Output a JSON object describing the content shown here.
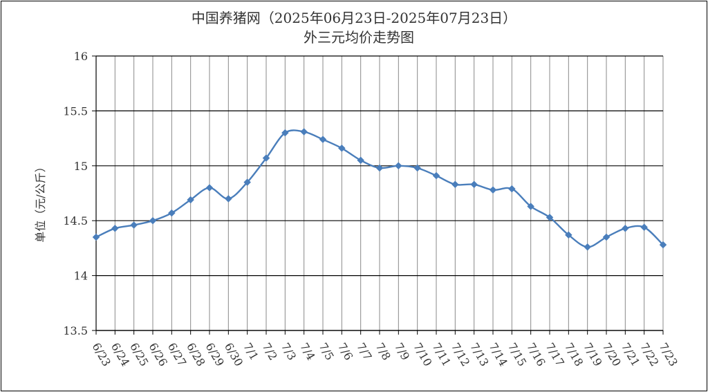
{
  "chart_data": {
    "type": "line",
    "title": "中国养猪网（2025年06月23日-2025年07月23日）",
    "subtitle": "外三元均价走势图",
    "xlabel": "",
    "ylabel": "单位（元/公斤）",
    "ylim": [
      13.5,
      16
    ],
    "yticks": [
      "13.5",
      "14",
      "14.5",
      "15",
      "15.5",
      "16"
    ],
    "grid": true,
    "legend": "none",
    "categories": [
      "6/23",
      "6/24",
      "6/25",
      "6/26",
      "6/27",
      "6/28",
      "6/29",
      "6/30",
      "7/1",
      "7/2",
      "7/3",
      "7/4",
      "7/5",
      "7/6",
      "7/7",
      "7/8",
      "7/9",
      "7/10",
      "7/11",
      "7/12",
      "7/13",
      "7/14",
      "7/15",
      "7/16",
      "7/17",
      "7/18",
      "7/19",
      "7/20",
      "7/21",
      "7/22",
      "7/23"
    ],
    "series": [
      {
        "color": "#4a7ebb",
        "values": [
          14.35,
          14.43,
          14.46,
          14.5,
          14.57,
          14.69,
          14.8,
          14.7,
          14.85,
          15.07,
          15.3,
          15.31,
          15.24,
          15.16,
          15.05,
          14.98,
          15.0,
          14.98,
          14.91,
          14.83,
          14.83,
          14.78,
          14.79,
          14.63,
          14.53,
          14.37,
          14.26,
          14.35,
          14.43,
          14.44,
          14.28
        ]
      }
    ]
  }
}
